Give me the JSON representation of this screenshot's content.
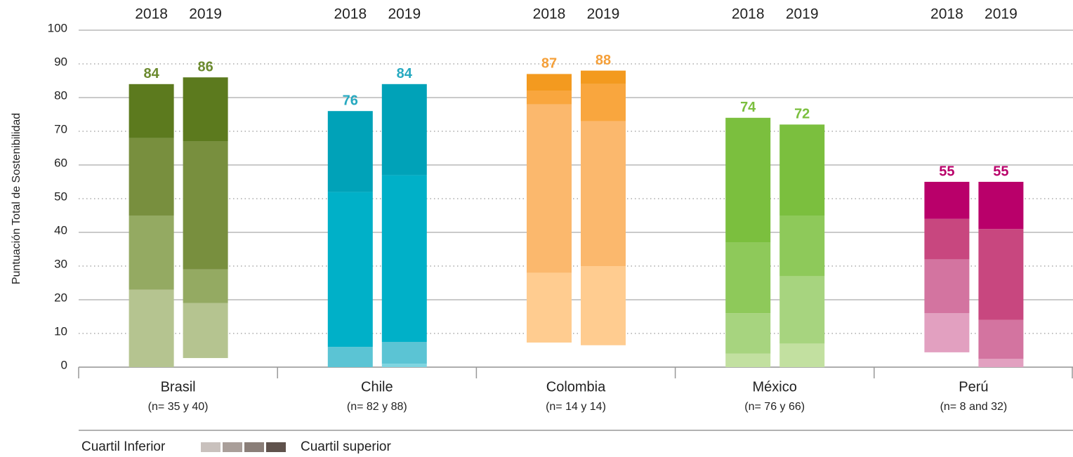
{
  "chart_data": {
    "type": "box",
    "y_label": "Puntuación Total de Sostenibilidad",
    "ylim": [
      0,
      100
    ],
    "yticks": [
      0,
      10,
      20,
      30,
      40,
      50,
      60,
      70,
      80,
      90,
      100
    ],
    "grid": true,
    "years": [
      "2018",
      "2019"
    ],
    "groups": [
      {
        "name": "Brasil",
        "note": "(n= 35 y 40)",
        "colors": [
          "#b5c490",
          "#94aa62",
          "#788f3e",
          "#5c7a1e"
        ],
        "label_color": "#6b8a2e",
        "bars": [
          {
            "min": 0,
            "q1": 23,
            "median": 45,
            "q3": 68,
            "max": 84
          },
          {
            "min": 2.7,
            "q1": 19,
            "median": 29,
            "q3": 67,
            "max": 86
          }
        ]
      },
      {
        "name": "Chile",
        "note": "(n= 82 y 88)",
        "colors": [
          "#7fd4e0",
          "#5bc4d4",
          "#00b0c8",
          "#00a2b8"
        ],
        "label_color": "#26a9c0",
        "bars": [
          {
            "min": 0,
            "q1": 0,
            "median": 6,
            "q3": 52,
            "max": 76
          },
          {
            "min": 0,
            "q1": 1,
            "median": 7.5,
            "q3": 57,
            "max": 84
          }
        ]
      },
      {
        "name": "Colombia",
        "note": "(n= 14 y 14)",
        "colors": [
          "#ffcc90",
          "#fbb86d",
          "#f9a63e",
          "#f39a1f"
        ],
        "label_color": "#f5a03a",
        "bars": [
          {
            "min": 7.3,
            "q1": 28,
            "median": 78,
            "q3": 82,
            "max": 87
          },
          {
            "min": 6.5,
            "q1": 30,
            "median": 73,
            "q3": 84,
            "max": 88
          }
        ]
      },
      {
        "name": "México",
        "note": "(n= 76 y 66)",
        "colors": [
          "#c2e0a0",
          "#a7d47f",
          "#8ec95a",
          "#7bbf3e"
        ],
        "label_color": "#7bbf3e",
        "bars": [
          {
            "min": 0,
            "q1": 4,
            "median": 16,
            "q3": 37,
            "max": 74
          },
          {
            "min": 0,
            "q1": 7,
            "median": 27,
            "q3": 45,
            "max": 72
          }
        ]
      },
      {
        "name": "Perú",
        "note": "(n= 8 and 32)",
        "colors": [
          "#e2a0c0",
          "#d374a0",
          "#c8477f",
          "#b9006a"
        ],
        "label_color": "#b9006a",
        "bars": [
          {
            "min": 4.4,
            "q1": 16,
            "median": 32,
            "q3": 44,
            "max": 55
          },
          {
            "min": 0,
            "q1": 2.5,
            "median": 14,
            "q3": 41,
            "max": 55
          }
        ]
      }
    ],
    "legend": {
      "low": "Cuartil Inferior",
      "high": "Cuartil superior",
      "colors": [
        "#c9c1bd",
        "#a99e99",
        "#8a7e78",
        "#5f524c"
      ]
    }
  }
}
